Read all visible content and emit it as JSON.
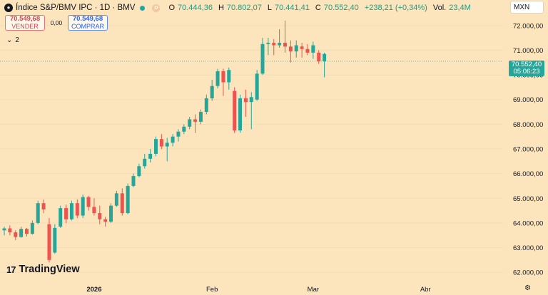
{
  "header": {
    "symbol_icon_name": "mexico-index-icon",
    "title": "Índice S&P/BMV IPC · 1D · BMV",
    "status_badge": "D",
    "ohlc": {
      "o_label": "O",
      "o": "70.444,36",
      "h_label": "H",
      "h": "70.802,07",
      "l_label": "L",
      "l": "70.441,41",
      "c_label": "C",
      "c": "70.552,40",
      "change": "+238,21 (+0,34%)",
      "vol_label": "Vol.",
      "vol": "23,4M"
    }
  },
  "trade": {
    "sell_price": "70.549,68",
    "sell_label": "VENDER",
    "spread": "0,00",
    "buy_price": "70.549,68",
    "buy_label": "COMPRAR"
  },
  "indicators_toggle": {
    "icon": "chevron-down-icon",
    "count": "2"
  },
  "currency": "MXN",
  "last_price": {
    "value": "70.552,40",
    "countdown": "05:06:23"
  },
  "brand": {
    "name": "TradingView",
    "logo": "tradingview-logo"
  },
  "settings_icon": "gear-icon",
  "colors": {
    "up": "#26a69a",
    "down": "#ef5350",
    "background": "#fce5bd"
  },
  "chart_data": {
    "type": "candlestick",
    "ylim": [
      61600,
      72400
    ],
    "yticks": [
      "72.000,00",
      "71.000,00",
      "70.000,00",
      "69.000,00",
      "68.000,00",
      "67.000,00",
      "66.000,00",
      "65.000,00",
      "64.000,00",
      "63.000,00",
      "62.000,00"
    ],
    "ytick_values": [
      72000,
      71000,
      70000,
      69000,
      68000,
      67000,
      66000,
      65000,
      64000,
      63000,
      62000
    ],
    "xticks": [
      {
        "label": "2026",
        "index": 16,
        "bold": true
      },
      {
        "label": "Feb",
        "index": 37,
        "bold": false
      },
      {
        "label": "Mar",
        "index": 55,
        "bold": false
      },
      {
        "label": "Abr",
        "index": 75,
        "bold": false
      }
    ],
    "last_price_value": 70552.4,
    "candles": [
      {
        "o": 63700,
        "h": 63850,
        "l": 63500,
        "c": 63780
      },
      {
        "o": 63780,
        "h": 63900,
        "l": 63500,
        "c": 63620
      },
      {
        "o": 63620,
        "h": 63700,
        "l": 63300,
        "c": 63430
      },
      {
        "o": 63430,
        "h": 63850,
        "l": 63400,
        "c": 63760
      },
      {
        "o": 63760,
        "h": 63800,
        "l": 63450,
        "c": 63560
      },
      {
        "o": 63560,
        "h": 64100,
        "l": 63530,
        "c": 64000
      },
      {
        "o": 64000,
        "h": 64900,
        "l": 63950,
        "c": 64800
      },
      {
        "o": 64800,
        "h": 64950,
        "l": 64400,
        "c": 64550
      },
      {
        "o": 63950,
        "h": 64200,
        "l": 62400,
        "c": 62500
      },
      {
        "o": 62800,
        "h": 63950,
        "l": 62750,
        "c": 63800
      },
      {
        "o": 63850,
        "h": 64700,
        "l": 63800,
        "c": 64600
      },
      {
        "o": 64600,
        "h": 64750,
        "l": 64000,
        "c": 64150
      },
      {
        "o": 64150,
        "h": 64900,
        "l": 64100,
        "c": 64800
      },
      {
        "o": 64800,
        "h": 64950,
        "l": 64200,
        "c": 64300
      },
      {
        "o": 64300,
        "h": 65150,
        "l": 64200,
        "c": 65050
      },
      {
        "o": 65050,
        "h": 65100,
        "l": 64500,
        "c": 64650
      },
      {
        "o": 64650,
        "h": 65000,
        "l": 64300,
        "c": 64400
      },
      {
        "o": 64400,
        "h": 64700,
        "l": 63950,
        "c": 64150
      },
      {
        "o": 64150,
        "h": 64250,
        "l": 63850,
        "c": 64050
      },
      {
        "o": 64050,
        "h": 64800,
        "l": 64000,
        "c": 64700
      },
      {
        "o": 64700,
        "h": 65300,
        "l": 64650,
        "c": 65200
      },
      {
        "o": 65200,
        "h": 65400,
        "l": 64300,
        "c": 64400
      },
      {
        "o": 64400,
        "h": 65600,
        "l": 64350,
        "c": 65500
      },
      {
        "o": 65500,
        "h": 66000,
        "l": 65450,
        "c": 65900
      },
      {
        "o": 65900,
        "h": 66400,
        "l": 65850,
        "c": 66300
      },
      {
        "o": 66300,
        "h": 66800,
        "l": 66200,
        "c": 66600
      },
      {
        "o": 66600,
        "h": 67000,
        "l": 66450,
        "c": 66800
      },
      {
        "o": 66800,
        "h": 67500,
        "l": 66700,
        "c": 67400
      },
      {
        "o": 67400,
        "h": 67600,
        "l": 67000,
        "c": 67100
      },
      {
        "o": 67100,
        "h": 67450,
        "l": 66500,
        "c": 67250
      },
      {
        "o": 67250,
        "h": 67600,
        "l": 67100,
        "c": 67500
      },
      {
        "o": 67500,
        "h": 67800,
        "l": 67300,
        "c": 67700
      },
      {
        "o": 67700,
        "h": 68000,
        "l": 67600,
        "c": 67900
      },
      {
        "o": 67900,
        "h": 68300,
        "l": 67800,
        "c": 68200
      },
      {
        "o": 68200,
        "h": 68400,
        "l": 67650,
        "c": 68100
      },
      {
        "o": 68100,
        "h": 68600,
        "l": 68000,
        "c": 68500
      },
      {
        "o": 68500,
        "h": 69200,
        "l": 68400,
        "c": 69050
      },
      {
        "o": 69050,
        "h": 69800,
        "l": 68950,
        "c": 69550
      },
      {
        "o": 69550,
        "h": 70250,
        "l": 69450,
        "c": 70150
      },
      {
        "o": 70150,
        "h": 70250,
        "l": 69150,
        "c": 69700
      },
      {
        "o": 69700,
        "h": 70300,
        "l": 69400,
        "c": 70200
      },
      {
        "o": 69350,
        "h": 69500,
        "l": 67650,
        "c": 67750
      },
      {
        "o": 67750,
        "h": 69200,
        "l": 67650,
        "c": 69050
      },
      {
        "o": 69050,
        "h": 69400,
        "l": 68300,
        "c": 68900
      },
      {
        "o": 68900,
        "h": 69300,
        "l": 67800,
        "c": 69100
      },
      {
        "o": 69000,
        "h": 70200,
        "l": 68950,
        "c": 70050
      },
      {
        "o": 70050,
        "h": 71500,
        "l": 70000,
        "c": 71250
      },
      {
        "o": 71250,
        "h": 71500,
        "l": 70800,
        "c": 71300
      },
      {
        "o": 71300,
        "h": 71450,
        "l": 70800,
        "c": 71200
      },
      {
        "o": 71200,
        "h": 71850,
        "l": 71100,
        "c": 71300
      },
      {
        "o": 71300,
        "h": 72200,
        "l": 70900,
        "c": 71150
      },
      {
        "o": 71150,
        "h": 71400,
        "l": 70500,
        "c": 70950
      },
      {
        "o": 70950,
        "h": 71400,
        "l": 70700,
        "c": 71200
      },
      {
        "o": 71150,
        "h": 71300,
        "l": 70700,
        "c": 71050
      },
      {
        "o": 71050,
        "h": 71250,
        "l": 70800,
        "c": 70900
      },
      {
        "o": 70900,
        "h": 71350,
        "l": 70650,
        "c": 71200
      },
      {
        "o": 70900,
        "h": 71000,
        "l": 70450,
        "c": 70550
      },
      {
        "o": 70550,
        "h": 70900,
        "l": 69900,
        "c": 70850
      }
    ]
  }
}
